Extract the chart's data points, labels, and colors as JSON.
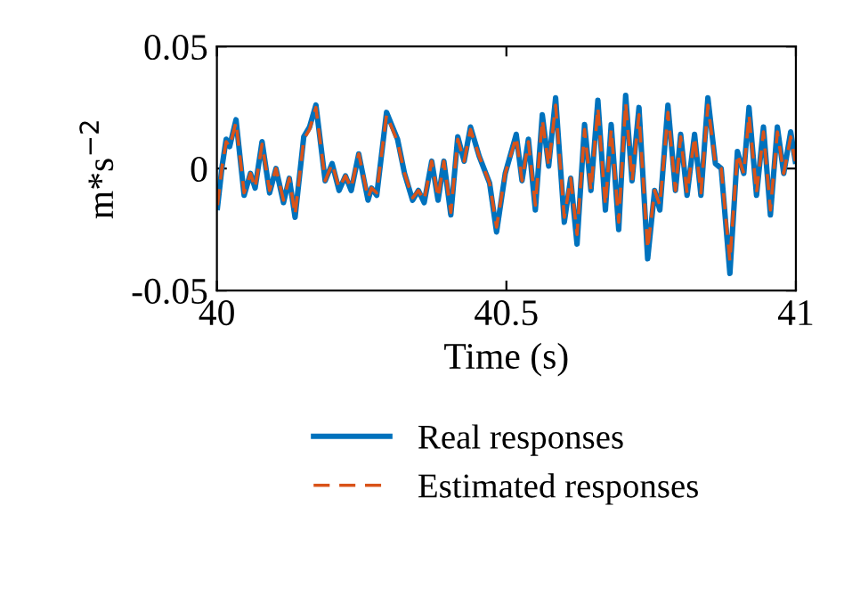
{
  "chart_data": {
    "type": "line",
    "xlabel": "Time (s)",
    "ylabel": "m*s$^{−2}$",
    "xlim": [
      40,
      41
    ],
    "xticks": [
      40,
      40.5,
      41
    ],
    "ylim": [
      -0.05,
      0.05
    ],
    "yticks": [
      -0.05,
      0,
      0.05
    ],
    "grid": false,
    "legend": "bottom",
    "marker": "none",
    "x": [
      40.001,
      40.009,
      40.016,
      40.022,
      40.033,
      40.047,
      40.058,
      40.066,
      40.078,
      40.091,
      40.102,
      40.115,
      40.125,
      40.135,
      40.15,
      40.16,
      40.171,
      40.187,
      40.199,
      40.211,
      40.222,
      40.232,
      40.245,
      40.261,
      40.267,
      40.276,
      40.293,
      40.312,
      40.324,
      40.338,
      40.348,
      40.358,
      40.371,
      40.382,
      40.392,
      40.404,
      40.416,
      40.427,
      40.438,
      40.453,
      40.471,
      40.483,
      40.498,
      40.517,
      40.527,
      40.538,
      40.55,
      40.562,
      40.573,
      40.585,
      40.6,
      40.611,
      40.622,
      40.635,
      40.646,
      40.658,
      40.671,
      40.681,
      40.694,
      40.706,
      40.717,
      40.729,
      40.744,
      40.756,
      40.765,
      40.779,
      40.792,
      40.801,
      40.812,
      40.825,
      40.836,
      40.848,
      40.861,
      40.871,
      40.886,
      40.899,
      40.91,
      40.919,
      40.932,
      40.944,
      40.956,
      40.968,
      40.979,
      40.991,
      40.999
    ],
    "series": [
      {
        "name": "Real responses",
        "color": "#0072bd",
        "line_style": "solid",
        "values": [
          -0.016,
          0.001,
          0.012,
          0.009,
          0.02,
          -0.011,
          -0.002,
          -0.008,
          0.011,
          -0.01,
          0.0,
          -0.014,
          -0.004,
          -0.02,
          0.013,
          0.017,
          0.026,
          -0.005,
          0.002,
          -0.009,
          -0.003,
          -0.009,
          0.006,
          -0.013,
          -0.008,
          -0.011,
          0.023,
          0.012,
          -0.002,
          -0.013,
          -0.009,
          -0.014,
          0.003,
          -0.013,
          0.003,
          -0.019,
          0.013,
          0.003,
          0.017,
          0.005,
          -0.006,
          -0.026,
          -0.002,
          0.014,
          -0.005,
          0.012,
          -0.017,
          0.022,
          0.001,
          0.029,
          -0.022,
          -0.004,
          -0.031,
          0.018,
          -0.009,
          0.028,
          -0.017,
          0.018,
          -0.025,
          0.03,
          -0.005,
          0.025,
          -0.037,
          -0.009,
          -0.017,
          0.026,
          -0.009,
          0.014,
          -0.011,
          0.014,
          -0.011,
          0.029,
          0.002,
          0.0,
          -0.043,
          0.007,
          -0.002,
          0.025,
          -0.011,
          0.017,
          -0.019,
          0.017,
          -0.002,
          0.015,
          0.003
        ]
      },
      {
        "name": "Estimated responses",
        "color": "#d95319",
        "line_style": "dashed",
        "values": [
          -0.015,
          0.001,
          0.011,
          0.009,
          0.019,
          -0.01,
          -0.002,
          -0.008,
          0.01,
          -0.009,
          0.0,
          -0.013,
          -0.004,
          -0.019,
          0.012,
          0.016,
          0.025,
          -0.005,
          0.002,
          -0.008,
          -0.003,
          -0.008,
          0.006,
          -0.012,
          -0.008,
          -0.01,
          0.022,
          0.011,
          -0.002,
          -0.012,
          -0.009,
          -0.013,
          0.003,
          -0.012,
          0.003,
          -0.018,
          0.012,
          0.003,
          0.016,
          0.005,
          -0.006,
          -0.024,
          -0.002,
          0.013,
          -0.005,
          0.011,
          -0.015,
          0.02,
          0.001,
          0.026,
          -0.02,
          -0.004,
          -0.027,
          0.016,
          -0.009,
          0.025,
          -0.015,
          0.016,
          -0.022,
          0.027,
          -0.005,
          0.022,
          -0.033,
          -0.009,
          -0.015,
          0.023,
          -0.009,
          0.013,
          -0.01,
          0.013,
          -0.01,
          0.026,
          0.002,
          0.0,
          -0.038,
          0.006,
          -0.002,
          0.022,
          -0.01,
          0.015,
          -0.017,
          0.015,
          -0.002,
          0.013,
          0.003
        ]
      }
    ]
  }
}
